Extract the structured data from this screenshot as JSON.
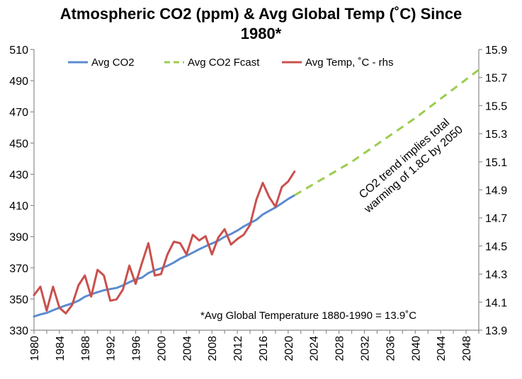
{
  "chart_data": {
    "type": "line",
    "title_lines": [
      "Atmospheric CO2 (ppm) & Avg Global Temp (˚C) Since",
      "1980*"
    ],
    "x_ticks": [
      1980,
      1984,
      1988,
      1992,
      1996,
      2000,
      2004,
      2008,
      2012,
      2016,
      2020,
      2024,
      2028,
      2032,
      2036,
      2040,
      2044,
      2048
    ],
    "xlim": [
      1980,
      2050
    ],
    "y_left": {
      "ticks": [
        330,
        350,
        370,
        390,
        410,
        430,
        450,
        470,
        490,
        510
      ],
      "lim": [
        330,
        510
      ]
    },
    "y_right": {
      "ticks": [
        13.9,
        14.1,
        14.3,
        14.5,
        14.7,
        14.9,
        15.1,
        15.3,
        15.5,
        15.7,
        15.9
      ],
      "lim": [
        13.9,
        15.9
      ]
    },
    "grid": false,
    "legend_position": "top",
    "series": [
      {
        "name": "Avg CO2",
        "axis": "left",
        "color": "#5b8bd0",
        "style": "solid",
        "x": [
          1980,
          1981,
          1982,
          1983,
          1984,
          1985,
          1986,
          1987,
          1988,
          1989,
          1990,
          1991,
          1992,
          1993,
          1994,
          1995,
          1996,
          1997,
          1998,
          1999,
          2000,
          2001,
          2002,
          2003,
          2004,
          2005,
          2006,
          2007,
          2008,
          2009,
          2010,
          2011,
          2012,
          2013,
          2014,
          2015,
          2016,
          2017,
          2018,
          2019,
          2020,
          2021
        ],
        "values": [
          338.8,
          340.1,
          341.1,
          342.8,
          344.4,
          345.9,
          347.2,
          348.9,
          351.5,
          353.0,
          354.4,
          355.6,
          356.4,
          357.1,
          358.8,
          360.8,
          362.6,
          363.7,
          366.7,
          368.4,
          369.7,
          371.3,
          373.4,
          375.9,
          377.7,
          379.8,
          381.9,
          383.8,
          385.6,
          387.4,
          389.9,
          391.7,
          393.9,
          396.5,
          398.7,
          400.8,
          404.2,
          406.5,
          408.7,
          411.4,
          414.2,
          416.5
        ]
      },
      {
        "name": "Avg CO2 Fcast",
        "axis": "left",
        "color": "#9bcc4e",
        "style": "dashed",
        "x": [
          2021,
          2030,
          2040,
          2050
        ],
        "values": [
          416.5,
          438.0,
          466.0,
          497.0
        ]
      },
      {
        "name": "Avg Temp, ˚C - rhs",
        "axis": "right",
        "color": "#c9504d",
        "style": "solid",
        "x": [
          1980,
          1981,
          1982,
          1983,
          1984,
          1985,
          1986,
          1987,
          1988,
          1989,
          1990,
          1991,
          1992,
          1993,
          1994,
          1995,
          1996,
          1997,
          1998,
          1999,
          2000,
          2001,
          2002,
          2003,
          2004,
          2005,
          2006,
          2007,
          2008,
          2009,
          2010,
          2011,
          2012,
          2013,
          2014,
          2015,
          2016,
          2017,
          2018,
          2019,
          2020,
          2021
        ],
        "values": [
          14.15,
          14.21,
          14.04,
          14.21,
          14.06,
          14.02,
          14.08,
          14.22,
          14.29,
          14.14,
          14.33,
          14.29,
          14.11,
          14.12,
          14.19,
          14.36,
          14.23,
          14.38,
          14.52,
          14.29,
          14.3,
          14.44,
          14.53,
          14.52,
          14.44,
          14.58,
          14.54,
          14.57,
          14.44,
          14.56,
          14.62,
          14.51,
          14.55,
          14.58,
          14.65,
          14.83,
          14.95,
          14.85,
          14.78,
          14.92,
          14.96,
          15.03
        ]
      }
    ],
    "annotations": {
      "trend_lines": [
        "CO2 trend implies total",
        "warming of 1.8C by 2050"
      ],
      "footnote": "*Avg Global Temperature 1880-1990 = 13.9˚C"
    }
  }
}
